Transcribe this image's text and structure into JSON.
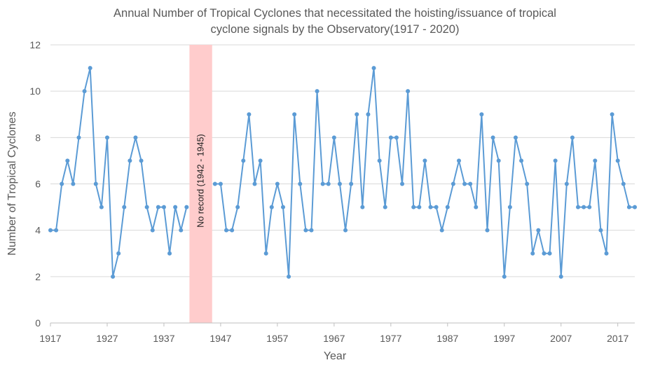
{
  "chart_data": {
    "type": "line",
    "title": [
      "Annual Number of Tropical Cyclones that necessitated the hoisting/issuance of tropical",
      "cyclone signals by the Observatory(1917 - 2020)"
    ],
    "xlabel": "Year",
    "ylabel": "Number of Tropical Cyclones",
    "xlim": [
      1917,
      2020
    ],
    "ylim": [
      0,
      12
    ],
    "y_ticks": [
      0,
      2,
      4,
      6,
      8,
      10,
      12
    ],
    "x_ticks": [
      1917,
      1927,
      1937,
      1947,
      1957,
      1967,
      1977,
      1987,
      1997,
      2007,
      2017
    ],
    "grid": "horizontal",
    "no_record_band": {
      "from": 1942,
      "to": 1945,
      "label": "No record (1942 - 1945)",
      "color": "#ffcccc"
    },
    "series": [
      {
        "name": "Tropical cyclones",
        "color": "#5b9bd5",
        "segments": [
          {
            "start_year": 1917,
            "values": [
              4,
              4,
              6,
              7,
              6,
              8,
              10,
              11,
              6,
              5,
              8,
              2,
              3,
              5,
              7,
              8,
              7,
              5,
              4,
              5,
              5,
              3,
              5,
              4,
              5
            ]
          },
          {
            "start_year": 1946,
            "values": [
              6,
              6,
              4,
              4,
              5,
              7,
              9,
              6,
              7,
              3,
              5,
              6,
              5,
              2,
              9,
              6,
              4,
              4,
              10,
              6,
              6,
              8,
              6,
              4,
              6,
              9,
              5,
              9,
              11,
              7,
              5,
              8,
              8,
              6,
              10,
              5,
              5,
              7,
              5,
              5,
              4,
              5,
              6,
              7,
              6,
              6,
              5,
              9,
              4,
              8,
              7,
              2,
              5,
              8,
              7,
              6,
              3,
              4,
              3,
              3,
              7,
              2,
              6,
              8,
              5,
              5,
              5,
              7,
              4,
              3,
              9,
              7,
              6,
              5,
              5
            ]
          }
        ]
      }
    ]
  }
}
